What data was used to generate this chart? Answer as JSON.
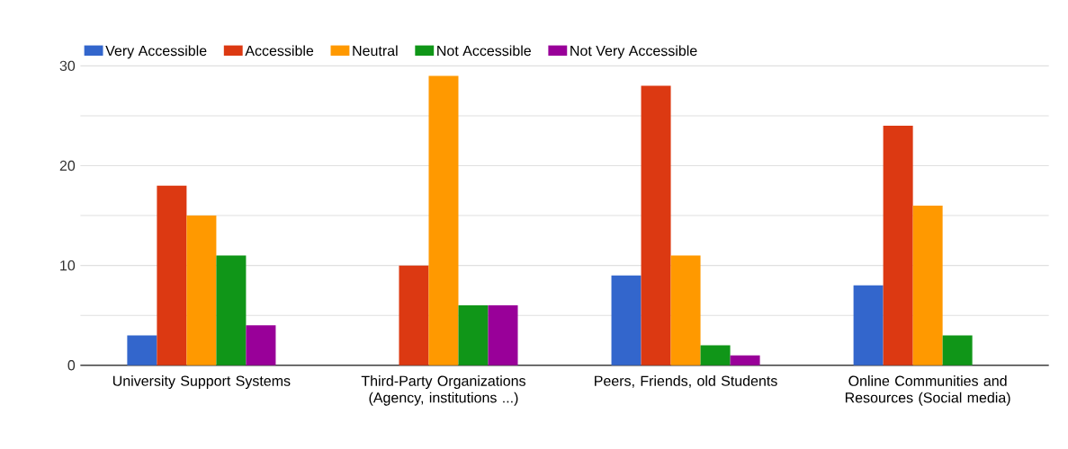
{
  "chart_data": {
    "type": "bar",
    "categories": [
      "University Support Systems",
      "Third-Party Organizations (Agency, institutions ...)",
      "Peers, Friends, old Students",
      "Online Communities and Resources (Social media)"
    ],
    "series": [
      {
        "name": "Very Accessible",
        "color": "#3366cc",
        "values": [
          3,
          0,
          9,
          8
        ]
      },
      {
        "name": "Accessible",
        "color": "#dc3912",
        "values": [
          18,
          10,
          28,
          24
        ]
      },
      {
        "name": "Neutral",
        "color": "#ff9900",
        "values": [
          15,
          29,
          11,
          16
        ]
      },
      {
        "name": "Not Accessible",
        "color": "#109618",
        "values": [
          11,
          6,
          2,
          3
        ]
      },
      {
        "name": "Not Very Accessible",
        "color": "#990099",
        "values": [
          4,
          6,
          1,
          0
        ]
      }
    ],
    "ylim": [
      0,
      30
    ],
    "yticks": [
      0,
      {
        "value": 5,
        "label": null
      },
      10,
      {
        "value": 15,
        "label": null
      },
      20,
      {
        "value": 25,
        "label": null
      },
      30
    ],
    "grid": "y",
    "legend": "top"
  }
}
